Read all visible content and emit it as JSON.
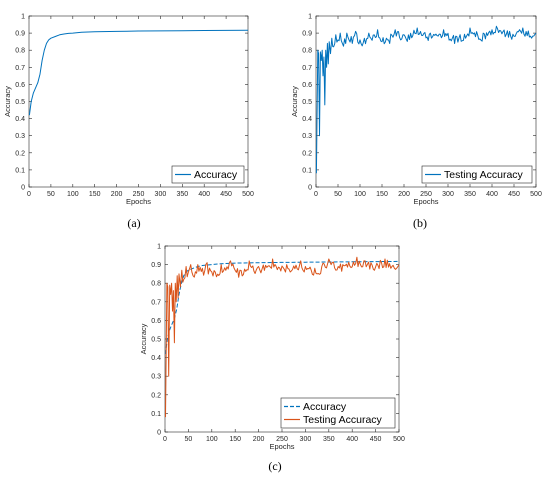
{
  "chart_data": [
    {
      "type": "line",
      "caption_letter": "a",
      "xlabel": "Epochs",
      "ylabel": "Accuracy",
      "xlim": [
        0,
        500
      ],
      "ylim": [
        0,
        1
      ],
      "xticks": [
        0,
        50,
        100,
        150,
        200,
        250,
        300,
        350,
        400,
        450,
        500
      ],
      "yticks": [
        0,
        0.1,
        0.2,
        0.3,
        0.4,
        0.5,
        0.6,
        0.7,
        0.8,
        0.9,
        1
      ],
      "legend_position": "bottom-right",
      "grid": false,
      "series": [
        {
          "name": "Accuracy",
          "color": "#0072BD",
          "style": "solid",
          "x": [
            1,
            5,
            10,
            15,
            20,
            25,
            30,
            35,
            40,
            45,
            50,
            60,
            70,
            80,
            90,
            100,
            120,
            150,
            200,
            250,
            300,
            350,
            400,
            450,
            500
          ],
          "y": [
            0.42,
            0.5,
            0.55,
            0.58,
            0.61,
            0.66,
            0.74,
            0.8,
            0.84,
            0.86,
            0.87,
            0.88,
            0.89,
            0.895,
            0.898,
            0.9,
            0.905,
            0.908,
            0.91,
            0.912,
            0.913,
            0.914,
            0.915,
            0.916,
            0.917
          ]
        }
      ]
    },
    {
      "type": "line",
      "caption_letter": "b",
      "xlabel": "Epochs",
      "ylabel": "Accuracy",
      "xlim": [
        0,
        500
      ],
      "ylim": [
        0,
        1
      ],
      "xticks": [
        0,
        50,
        100,
        150,
        200,
        250,
        300,
        350,
        400,
        450,
        500
      ],
      "yticks": [
        0,
        0.1,
        0.2,
        0.3,
        0.4,
        0.5,
        0.6,
        0.7,
        0.8,
        0.9,
        1
      ],
      "legend_position": "bottom-right",
      "grid": false,
      "series": [
        {
          "name": "Testing Accuracy",
          "color": "#0072BD",
          "style": "solid",
          "x": [
            1,
            4,
            6,
            8,
            10,
            12,
            14,
            16,
            18,
            20,
            22,
            24,
            26,
            28,
            30,
            33,
            36,
            40,
            45,
            50,
            55,
            60,
            70,
            80,
            90,
            100,
            120,
            140,
            160,
            180,
            200,
            230,
            260,
            290,
            320,
            350,
            380,
            410,
            440,
            470,
            500
          ],
          "y": [
            0.08,
            0.8,
            0.78,
            0.3,
            0.79,
            0.74,
            0.8,
            0.65,
            0.76,
            0.48,
            0.8,
            0.7,
            0.84,
            0.72,
            0.85,
            0.78,
            0.87,
            0.82,
            0.89,
            0.86,
            0.9,
            0.84,
            0.9,
            0.88,
            0.91,
            0.86,
            0.9,
            0.92,
            0.87,
            0.92,
            0.89,
            0.93,
            0.9,
            0.92,
            0.88,
            0.93,
            0.9,
            0.94,
            0.91,
            0.93,
            0.9
          ]
        }
      ]
    },
    {
      "type": "line",
      "caption_letter": "c",
      "xlabel": "Epochs",
      "ylabel": "Accuracy",
      "xlim": [
        0,
        500
      ],
      "ylim": [
        0,
        1
      ],
      "xticks": [
        0,
        50,
        100,
        150,
        200,
        250,
        300,
        350,
        400,
        450,
        500
      ],
      "yticks": [
        0,
        0.1,
        0.2,
        0.3,
        0.4,
        0.5,
        0.6,
        0.7,
        0.8,
        0.9,
        1
      ],
      "legend_position": "bottom-right",
      "grid": false,
      "series": [
        {
          "name": "Accuracy",
          "color": "#0072BD",
          "style": "dashed",
          "x": [
            1,
            5,
            10,
            15,
            20,
            25,
            30,
            35,
            40,
            45,
            50,
            60,
            70,
            80,
            90,
            100,
            120,
            150,
            200,
            250,
            300,
            350,
            400,
            450,
            500
          ],
          "y": [
            0.42,
            0.5,
            0.55,
            0.58,
            0.61,
            0.66,
            0.74,
            0.8,
            0.84,
            0.86,
            0.87,
            0.88,
            0.89,
            0.895,
            0.898,
            0.9,
            0.905,
            0.908,
            0.91,
            0.912,
            0.913,
            0.914,
            0.915,
            0.916,
            0.917
          ]
        },
        {
          "name": "Testing Accuracy",
          "color": "#D95319",
          "style": "solid",
          "x": [
            1,
            4,
            6,
            8,
            10,
            12,
            14,
            16,
            18,
            20,
            22,
            24,
            26,
            28,
            30,
            33,
            36,
            40,
            45,
            50,
            55,
            60,
            70,
            80,
            90,
            100,
            120,
            140,
            160,
            180,
            200,
            230,
            260,
            290,
            320,
            350,
            380,
            410,
            440,
            470,
            500
          ],
          "y": [
            0.08,
            0.8,
            0.78,
            0.3,
            0.79,
            0.74,
            0.8,
            0.65,
            0.76,
            0.48,
            0.8,
            0.7,
            0.84,
            0.72,
            0.85,
            0.78,
            0.87,
            0.82,
            0.89,
            0.86,
            0.9,
            0.84,
            0.9,
            0.88,
            0.91,
            0.86,
            0.9,
            0.92,
            0.87,
            0.92,
            0.89,
            0.93,
            0.9,
            0.92,
            0.88,
            0.93,
            0.9,
            0.94,
            0.91,
            0.93,
            0.9
          ]
        }
      ]
    }
  ],
  "captions": [
    "(a)",
    "(b)",
    "(c)"
  ]
}
